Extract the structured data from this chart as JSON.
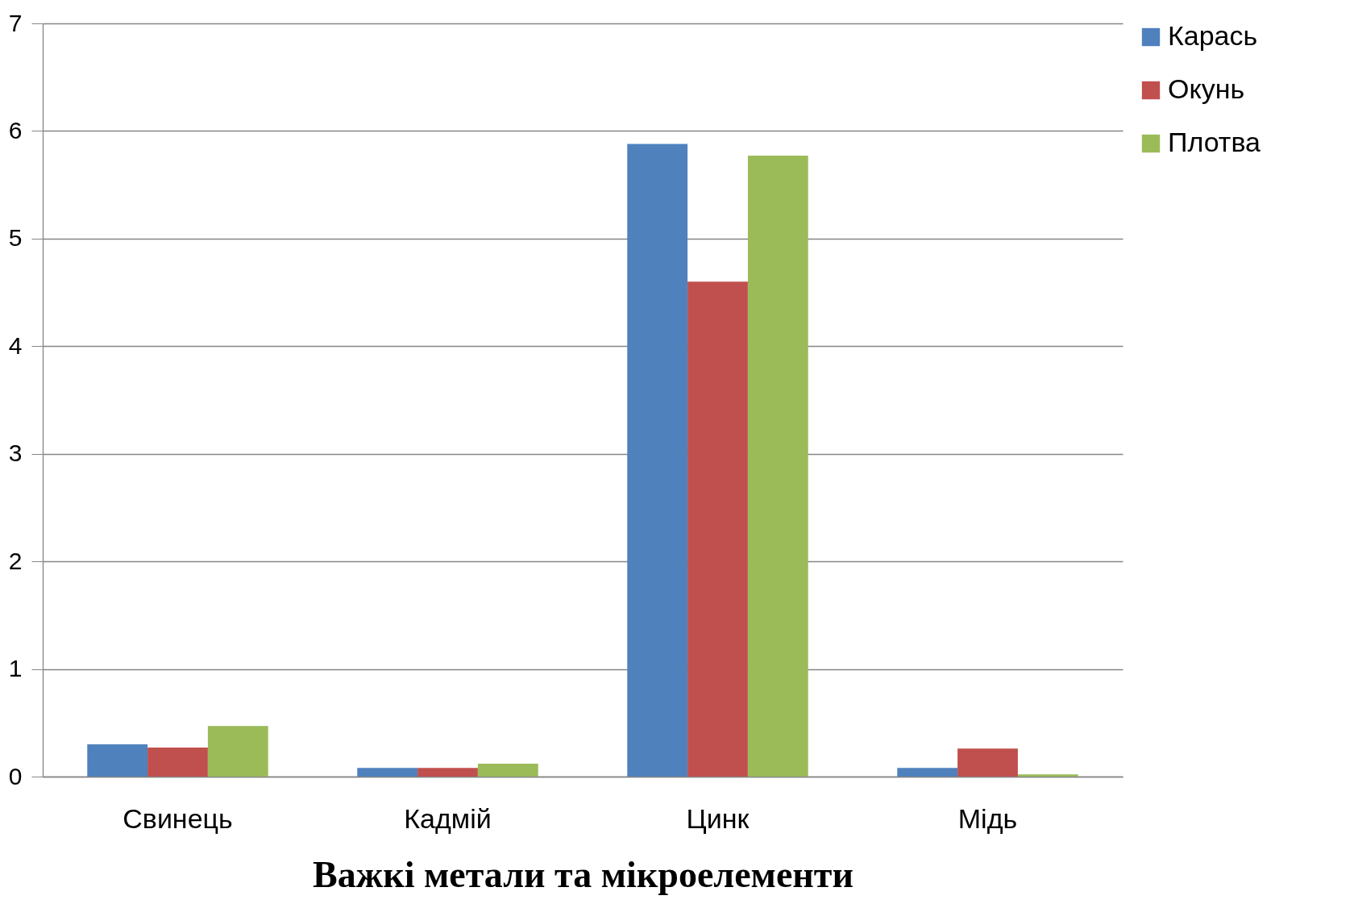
{
  "chart_data": {
    "type": "bar",
    "xlabel": "Важкі метали та мікроелементи",
    "categories": [
      "Свинець",
      "Кадмій",
      "Цинк",
      "Мідь"
    ],
    "series": [
      {
        "name": "Карась",
        "color": "#4f81bd",
        "values": [
          0.3,
          0.08,
          5.88,
          0.08
        ]
      },
      {
        "name": "Окунь",
        "color": "#c0504d",
        "values": [
          0.27,
          0.08,
          4.6,
          0.26
        ]
      },
      {
        "name": "Плотва",
        "color": "#9bbb59",
        "values": [
          0.47,
          0.12,
          5.77,
          0.02
        ]
      }
    ],
    "ylim": [
      0,
      7
    ],
    "yticks": [
      0,
      1,
      2,
      3,
      4,
      5,
      6,
      7
    ],
    "grid": "y",
    "legend": "right"
  }
}
